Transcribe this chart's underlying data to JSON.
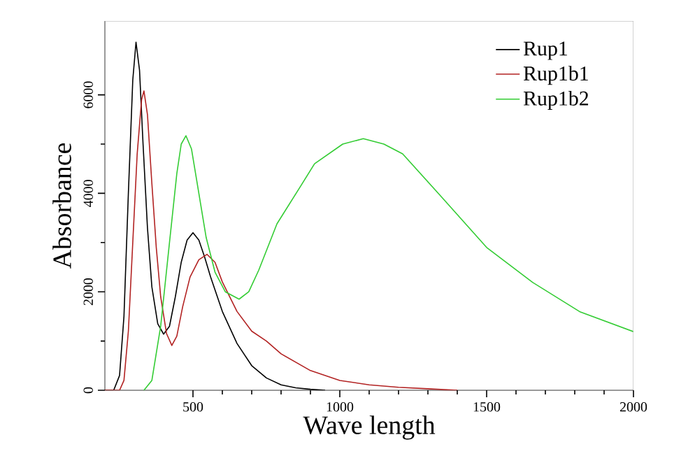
{
  "chart_data": {
    "type": "line",
    "xlabel": "Wave length",
    "ylabel": "Absorbance",
    "xlim": [
      200,
      2000
    ],
    "ylim": [
      0,
      7500
    ],
    "xticks": [
      500,
      1000,
      1500,
      2000
    ],
    "yticks": [
      0,
      2000,
      4000,
      6000
    ],
    "legend": "top right",
    "series": [
      {
        "name": "Rup1",
        "color": "#000000",
        "x": [
          200,
          230,
          250,
          265,
          280,
          295,
          306,
          318,
          330,
          345,
          360,
          380,
          400,
          420,
          440,
          460,
          480,
          500,
          520,
          540,
          560,
          600,
          650,
          700,
          750,
          800,
          850,
          900,
          950
        ],
        "values": [
          0,
          0,
          300,
          1500,
          4000,
          6300,
          7070,
          6500,
          5000,
          3300,
          2100,
          1350,
          1140,
          1300,
          1900,
          2600,
          3050,
          3200,
          3050,
          2700,
          2300,
          1600,
          950,
          500,
          250,
          110,
          50,
          20,
          0
        ]
      },
      {
        "name": "Rup1b1",
        "color": "#b22222",
        "x": [
          200,
          250,
          265,
          280,
          295,
          310,
          325,
          333,
          345,
          360,
          375,
          390,
          410,
          428,
          445,
          465,
          490,
          520,
          548,
          575,
          600,
          650,
          700,
          750,
          800,
          900,
          1000,
          1100,
          1200,
          1300,
          1400
        ],
        "values": [
          0,
          0,
          200,
          1200,
          3000,
          4800,
          5900,
          6080,
          5600,
          4200,
          2900,
          1900,
          1150,
          910,
          1100,
          1700,
          2300,
          2650,
          2760,
          2600,
          2200,
          1600,
          1200,
          1000,
          740,
          400,
          200,
          110,
          60,
          30,
          0
        ]
      },
      {
        "name": "Rup1b2",
        "color": "#33cc33",
        "x": [
          333,
          360,
          390,
          420,
          445,
          460,
          476,
          495,
          520,
          545,
          575,
          610,
          657,
          690,
          724,
          786,
          867,
          914,
          1010,
          1080,
          1150,
          1214,
          1343,
          1500,
          1657,
          1819,
          2000
        ],
        "values": [
          0,
          200,
          1300,
          3000,
          4400,
          5000,
          5170,
          4900,
          4000,
          3100,
          2400,
          2000,
          1850,
          2000,
          2440,
          3380,
          4150,
          4600,
          5000,
          5110,
          5000,
          4800,
          3950,
          2900,
          2190,
          1590,
          1190
        ]
      }
    ]
  }
}
